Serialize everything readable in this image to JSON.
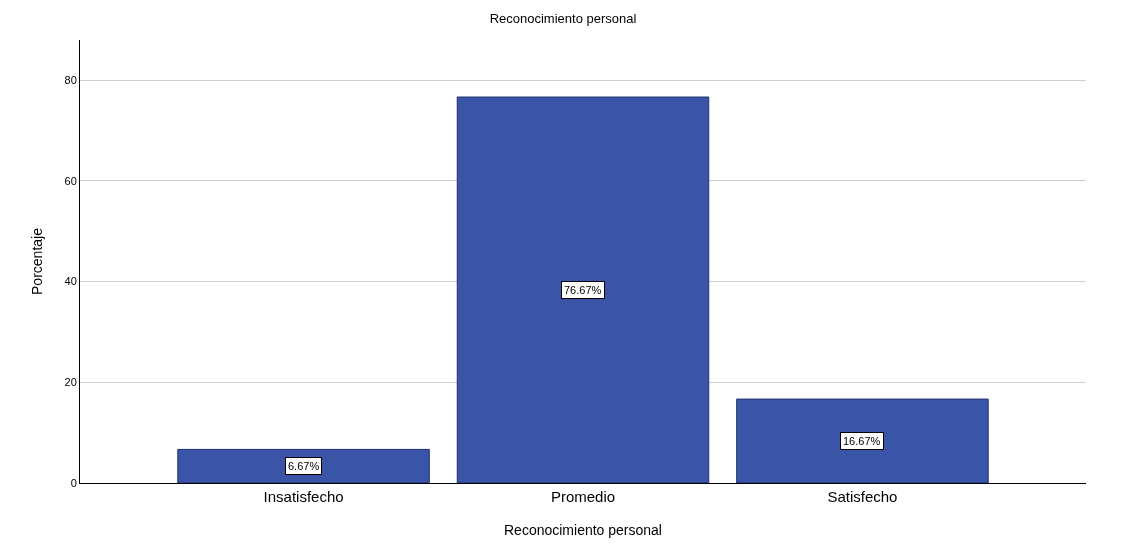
{
  "chart_data": {
    "type": "bar",
    "title": "Reconocimiento personal",
    "xlabel": "Reconocimiento personal",
    "ylabel": "Porcentaje",
    "categories": [
      "Insatisfecho",
      "Promedio",
      "Satisfecho"
    ],
    "values": [
      6.67,
      76.67,
      16.67
    ],
    "value_labels": [
      "6.67%",
      "76.67%",
      "16.67%"
    ],
    "color": "#3a55a8",
    "ylim": [
      0,
      88
    ],
    "yticks": [
      0,
      20,
      40,
      60,
      80
    ],
    "grid": "y",
    "legend": false
  }
}
